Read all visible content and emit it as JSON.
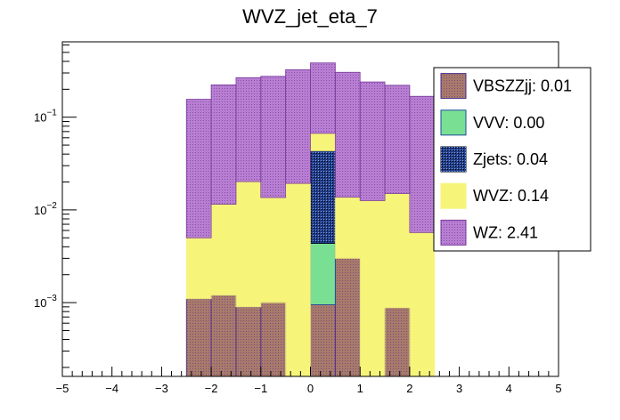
{
  "chart_data": {
    "type": "bar",
    "stacked": true,
    "title": "WVZ_jet_eta_7",
    "xlabel": "",
    "ylabel": "",
    "yscale": "log",
    "xlim": [
      -5,
      5
    ],
    "ylim": [
      0.00016,
      0.65
    ],
    "x_ticks": [
      {
        "v": -5,
        "label": "−5"
      },
      {
        "v": -4,
        "label": "−4"
      },
      {
        "v": -3,
        "label": "−3"
      },
      {
        "v": -2,
        "label": "−2"
      },
      {
        "v": -1,
        "label": "−1"
      },
      {
        "v": 0,
        "label": "0"
      },
      {
        "v": 1,
        "label": "1"
      },
      {
        "v": 2,
        "label": "2"
      },
      {
        "v": 3,
        "label": "3"
      },
      {
        "v": 4,
        "label": "4"
      },
      {
        "v": 5,
        "label": "5"
      }
    ],
    "y_ticks": [
      {
        "v": 0.1,
        "base": "10",
        "exp": "−1"
      },
      {
        "v": 0.01,
        "base": "10",
        "exp": "−2"
      },
      {
        "v": 0.001,
        "base": "10",
        "exp": "−3"
      }
    ],
    "bin_edges": [
      -2.5,
      -2.0,
      -1.5,
      -1.0,
      -0.5,
      0.0,
      0.5,
      1.0,
      1.5,
      2.0,
      2.5
    ],
    "series": [
      {
        "name": "VBSZZjj",
        "label": "VBSZZjj: 0.01",
        "color": "#a77a6b",
        "border": "#4b2c8c",
        "pattern": "dots",
        "values": [
          0.0011,
          0.0012,
          0.0009,
          0.001,
          0,
          0.00095,
          0.003,
          0,
          0.00088,
          0
        ]
      },
      {
        "name": "VVV",
        "label": "VVV: 0.00",
        "color": "#79e093",
        "border": "#1a4a9c",
        "pattern": "none",
        "values": [
          0,
          0,
          0,
          0,
          0,
          0.0034,
          0,
          0,
          0,
          0
        ]
      },
      {
        "name": "Zjets",
        "label": "Zjets: 0.04",
        "color": "#1f3d8c",
        "border": "#000000",
        "pattern": "checker",
        "values": [
          0,
          0,
          0,
          0,
          0,
          0.039,
          0,
          0,
          0,
          0
        ]
      },
      {
        "name": "WVZ",
        "label": "WVZ: 0.14",
        "color": "#f6f57a",
        "border": "#f6f57a",
        "pattern": "none",
        "values": [
          0.0039,
          0.0103,
          0.0193,
          0.0126,
          0.0193,
          0.0236,
          0.0107,
          0.0126,
          0.0141,
          0.0057
        ]
      },
      {
        "name": "WZ",
        "label": "WZ: 2.41",
        "color": "#b87ed2",
        "border": "#7a3a9c",
        "pattern": "dots",
        "values": [
          0.151,
          0.2117,
          0.2468,
          0.2624,
          0.306,
          0.318,
          0.2913,
          0.2274,
          0.2059,
          0.1623
        ]
      }
    ],
    "legend_order": [
      "VBSZZjj",
      "VVV",
      "Zjets",
      "WVZ",
      "WZ"
    ],
    "legend_position": "top-right"
  }
}
